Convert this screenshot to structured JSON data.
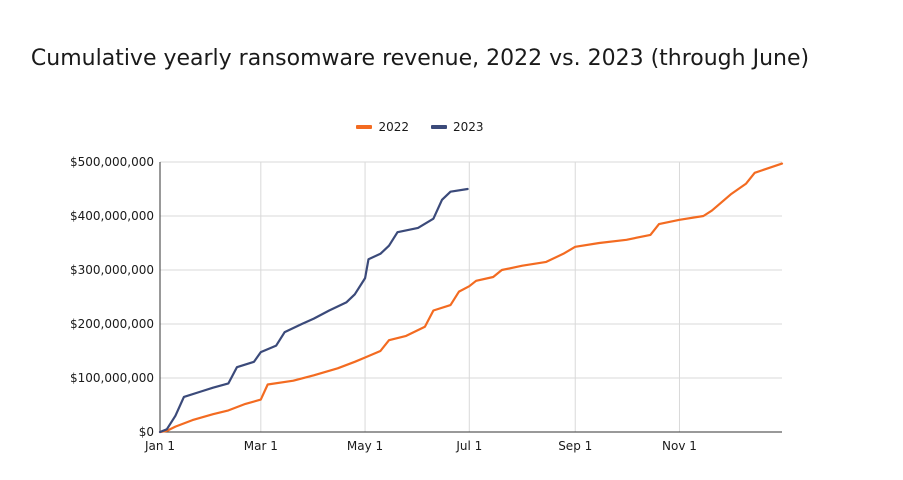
{
  "colors": {
    "s2022": "#f36b21",
    "s2023": "#3b4a7a",
    "grid": "#d9d9d9",
    "axis": "#333333"
  },
  "chart_data": {
    "type": "line",
    "title": "Cumulative yearly ransomware revenue, 2022 vs. 2023 (through June)",
    "xlabel": "",
    "ylabel": "",
    "legend_position": "top-center",
    "grid": true,
    "x_ticks": [
      "Jan 1",
      "Mar 1",
      "May 1",
      "Jul 1",
      "Sep 1",
      "Nov 1"
    ],
    "y_ticks": [
      "$0",
      "$100,000,000",
      "$200,000,000",
      "$300,000,000",
      "$400,000,000",
      "$500,000,000"
    ],
    "xlim": [
      "Jan 1",
      "Dec 31"
    ],
    "ylim": [
      0,
      500000000
    ],
    "series": [
      {
        "name": "2022",
        "points": [
          [
            "Jan 1",
            0
          ],
          [
            "Jan 5",
            2000000
          ],
          [
            "Jan 10",
            10000000
          ],
          [
            "Jan 20",
            22000000
          ],
          [
            "Feb 1",
            33000000
          ],
          [
            "Feb 10",
            40000000
          ],
          [
            "Feb 20",
            52000000
          ],
          [
            "Mar 1",
            60000000
          ],
          [
            "Mar 5",
            88000000
          ],
          [
            "Mar 20",
            95000000
          ],
          [
            "Apr 1",
            105000000
          ],
          [
            "Apr 15",
            118000000
          ],
          [
            "Apr 25",
            130000000
          ],
          [
            "May 1",
            138000000
          ],
          [
            "May 10",
            150000000
          ],
          [
            "May 15",
            170000000
          ],
          [
            "May 25",
            178000000
          ],
          [
            "Jun 5",
            195000000
          ],
          [
            "Jun 10",
            225000000
          ],
          [
            "Jun 20",
            235000000
          ],
          [
            "Jun 25",
            260000000
          ],
          [
            "Jul 1",
            270000000
          ],
          [
            "Jul 5",
            280000000
          ],
          [
            "Jul 15",
            287000000
          ],
          [
            "Jul 20",
            300000000
          ],
          [
            "Aug 1",
            308000000
          ],
          [
            "Aug 15",
            315000000
          ],
          [
            "Aug 25",
            330000000
          ],
          [
            "Sep 1",
            343000000
          ],
          [
            "Sep 15",
            350000000
          ],
          [
            "Oct 1",
            356000000
          ],
          [
            "Oct 15",
            365000000
          ],
          [
            "Oct 20",
            385000000
          ],
          [
            "Nov 1",
            393000000
          ],
          [
            "Nov 15",
            400000000
          ],
          [
            "Nov 20",
            410000000
          ],
          [
            "Dec 1",
            440000000
          ],
          [
            "Dec 10",
            460000000
          ],
          [
            "Dec 15",
            480000000
          ],
          [
            "Dec 31",
            497000000
          ]
        ]
      },
      {
        "name": "2023",
        "points": [
          [
            "Jan 1",
            0
          ],
          [
            "Jan 5",
            5000000
          ],
          [
            "Jan 10",
            30000000
          ],
          [
            "Jan 15",
            65000000
          ],
          [
            "Jan 25",
            75000000
          ],
          [
            "Feb 1",
            82000000
          ],
          [
            "Feb 10",
            90000000
          ],
          [
            "Feb 15",
            120000000
          ],
          [
            "Feb 25",
            130000000
          ],
          [
            "Mar 1",
            148000000
          ],
          [
            "Mar 10",
            160000000
          ],
          [
            "Mar 15",
            185000000
          ],
          [
            "Mar 25",
            200000000
          ],
          [
            "Apr 1",
            210000000
          ],
          [
            "Apr 10",
            225000000
          ],
          [
            "Apr 20",
            240000000
          ],
          [
            "Apr 25",
            255000000
          ],
          [
            "May 1",
            285000000
          ],
          [
            "May 3",
            320000000
          ],
          [
            "May 10",
            330000000
          ],
          [
            "May 15",
            345000000
          ],
          [
            "May 20",
            370000000
          ],
          [
            "Jun 1",
            378000000
          ],
          [
            "Jun 10",
            395000000
          ],
          [
            "Jun 15",
            430000000
          ],
          [
            "Jun 20",
            445000000
          ],
          [
            "Jun 30",
            450000000
          ]
        ]
      }
    ]
  }
}
